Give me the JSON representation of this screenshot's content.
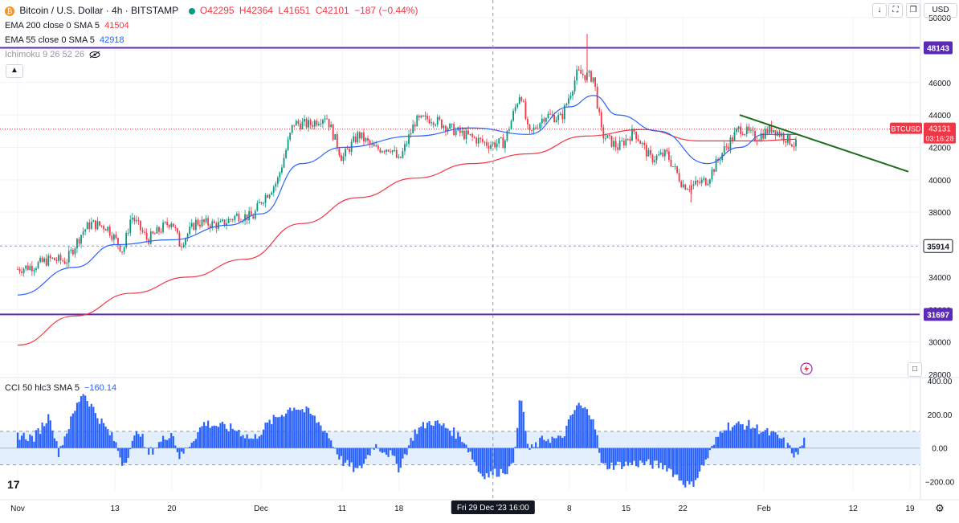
{
  "header": {
    "symbol_title": "Bitcoin / U.S. Dollar · 4h · BITSTAMP",
    "ohlc": {
      "o": "O42295",
      "h": "H42364",
      "l": "L41651",
      "c": "C42101",
      "change": "−187 (−0.44%)"
    },
    "ema200_label": "EMA 200 close 0 SMA 5",
    "ema200_value": "41504",
    "ema55_label": "EMA 55 close 0 SMA 5",
    "ema55_value": "42918",
    "ichimoku_label": "Ichimoku 9 26 52 26",
    "collapse_icon": "chevron-up-icon",
    "currency": "USD",
    "eye_icon": "eye-crossed-icon"
  },
  "colors": {
    "up": "#089981",
    "down": "#f23645",
    "ema200": "#f23645",
    "ema55": "#2962ff",
    "hline": "#5b2bb5",
    "trendline": "#1b6e1b",
    "cci": "#2962ff",
    "cci_band": "#e3effd"
  },
  "chart_data": [
    {
      "type": "candlestick",
      "title": "Bitcoin / U.S. Dollar · 4h · BITSTAMP",
      "x_ticks": [
        "Nov",
        "13",
        "20",
        "Dec",
        "11",
        "18",
        "Fri 29 Dec '23",
        "16:00",
        "8",
        "15",
        "22",
        "Feb",
        "12",
        "19"
      ],
      "y_ticks": [
        28000,
        30000,
        32000,
        34000,
        36000,
        38000,
        40000,
        42000,
        44000,
        46000,
        48000,
        50000
      ],
      "ylim": [
        27800,
        50200
      ],
      "close_path": [
        {
          "x": "Nov 1",
          "y": 34500
        },
        {
          "x": "Nov 3",
          "y": 34700
        },
        {
          "x": "Nov 5",
          "y": 35100
        },
        {
          "x": "Nov 7",
          "y": 35000
        },
        {
          "x": "Nov 9",
          "y": 36800
        },
        {
          "x": "Nov 10",
          "y": 37300
        },
        {
          "x": "Nov 12",
          "y": 37100
        },
        {
          "x": "Nov 14",
          "y": 35600
        },
        {
          "x": "Nov 15",
          "y": 37800
        },
        {
          "x": "Nov 17",
          "y": 36300
        },
        {
          "x": "Nov 20",
          "y": 37500
        },
        {
          "x": "Nov 21",
          "y": 36000
        },
        {
          "x": "Nov 23",
          "y": 37400
        },
        {
          "x": "Nov 26",
          "y": 37200
        },
        {
          "x": "Nov 28",
          "y": 37800
        },
        {
          "x": "Nov 30",
          "y": 37700
        },
        {
          "x": "Dec 1",
          "y": 38700
        },
        {
          "x": "Dec 3",
          "y": 39900
        },
        {
          "x": "Dec 5",
          "y": 43500
        },
        {
          "x": "Dec 7",
          "y": 43400
        },
        {
          "x": "Dec 9",
          "y": 44000
        },
        {
          "x": "Dec 11",
          "y": 41300
        },
        {
          "x": "Dec 13",
          "y": 42800
        },
        {
          "x": "Dec 15",
          "y": 41900
        },
        {
          "x": "Dec 17",
          "y": 42000
        },
        {
          "x": "Dec 18",
          "y": 41100
        },
        {
          "x": "Dec 20",
          "y": 43600
        },
        {
          "x": "Dec 22",
          "y": 43800
        },
        {
          "x": "Dec 25",
          "y": 43000
        },
        {
          "x": "Dec 27",
          "y": 42600
        },
        {
          "x": "Dec 29",
          "y": 42200
        },
        {
          "x": "Dec 31",
          "y": 42300
        },
        {
          "x": "Jan 2",
          "y": 45500
        },
        {
          "x": "Jan 3",
          "y": 42700
        },
        {
          "x": "Jan 5",
          "y": 44000
        },
        {
          "x": "Jan 7",
          "y": 43800
        },
        {
          "x": "Jan 9",
          "y": 46600
        },
        {
          "x": "Jan 11",
          "y": 46300
        },
        {
          "x": "Jan 12",
          "y": 42800
        },
        {
          "x": "Jan 14",
          "y": 42000
        },
        {
          "x": "Jan 16",
          "y": 43000
        },
        {
          "x": "Jan 18",
          "y": 41300
        },
        {
          "x": "Jan 20",
          "y": 41600
        },
        {
          "x": "Jan 22",
          "y": 39700
        },
        {
          "x": "Jan 23",
          "y": 39600
        },
        {
          "x": "Jan 25",
          "y": 40000
        },
        {
          "x": "Jan 27",
          "y": 41800
        },
        {
          "x": "Jan 29",
          "y": 43200
        },
        {
          "x": "Jan 31",
          "y": 42600
        },
        {
          "x": "Feb 2",
          "y": 43200
        },
        {
          "x": "Feb 5",
          "y": 42100
        }
      ],
      "extremes": {
        "high": 49000,
        "low": 38600
      },
      "ema200_path": [
        {
          "x": "Nov 1",
          "y": 29800
        },
        {
          "x": "Nov 8",
          "y": 31600
        },
        {
          "x": "Nov 15",
          "y": 33000
        },
        {
          "x": "Nov 22",
          "y": 34000
        },
        {
          "x": "Nov 29",
          "y": 35100
        },
        {
          "x": "Dec 6",
          "y": 37300
        },
        {
          "x": "Dec 13",
          "y": 38900
        },
        {
          "x": "Dec 20",
          "y": 40100
        },
        {
          "x": "Dec 27",
          "y": 41000
        },
        {
          "x": "Jan 3",
          "y": 41600
        },
        {
          "x": "Jan 10",
          "y": 42700
        },
        {
          "x": "Jan 17",
          "y": 43100
        },
        {
          "x": "Jan 24",
          "y": 42400
        },
        {
          "x": "Jan 31",
          "y": 42400
        },
        {
          "x": "Feb 5",
          "y": 42500
        }
      ],
      "ema55_path": [
        {
          "x": "Nov 1",
          "y": 32900
        },
        {
          "x": "Nov 8",
          "y": 34600
        },
        {
          "x": "Nov 13",
          "y": 36000
        },
        {
          "x": "Nov 20",
          "y": 36300
        },
        {
          "x": "Nov 27",
          "y": 37200
        },
        {
          "x": "Dec 1",
          "y": 37900
        },
        {
          "x": "Dec 6",
          "y": 41000
        },
        {
          "x": "Dec 11",
          "y": 42000
        },
        {
          "x": "Dec 20",
          "y": 42700
        },
        {
          "x": "Dec 27",
          "y": 43200
        },
        {
          "x": "Jan 3",
          "y": 42800
        },
        {
          "x": "Jan 8",
          "y": 44500
        },
        {
          "x": "Jan 11",
          "y": 45200
        },
        {
          "x": "Jan 14",
          "y": 44000
        },
        {
          "x": "Jan 19",
          "y": 43000
        },
        {
          "x": "Jan 25",
          "y": 41000
        },
        {
          "x": "Jan 29",
          "y": 42000
        },
        {
          "x": "Feb 1",
          "y": 42800
        },
        {
          "x": "Feb 5",
          "y": 42800
        }
      ],
      "horizontal_lines": [
        {
          "price": 48143,
          "label": "48143",
          "style": "solid"
        },
        {
          "price": 35914,
          "label": "35914",
          "style": "dashed"
        },
        {
          "price": 31697,
          "label": "31697",
          "style": "solid"
        }
      ],
      "trendline": [
        {
          "x": "Jan 29",
          "y": 44000
        },
        {
          "x": "Feb 19",
          "y": 40500
        }
      ],
      "last_price": {
        "symbol": "BTCUSD",
        "price": "43131",
        "countdown": "03:16:28"
      },
      "crosshair": {
        "x": "Fri 29 Dec '23 16:00"
      }
    },
    {
      "type": "bar",
      "title": "CCI 50 hlc3 SMA 5",
      "last_value": "−160.14",
      "y_ticks": [
        "400.00",
        "200.00",
        "0.00",
        "−200.00"
      ],
      "ylim": [
        -260,
        420
      ],
      "band": [
        -100,
        100
      ],
      "series": [
        {
          "x": "Nov 1",
          "y": 80
        },
        {
          "x": "Nov 3",
          "y": 60
        },
        {
          "x": "Nov 5",
          "y": 200
        },
        {
          "x": "Nov 6",
          "y": -30
        },
        {
          "x": "Nov 9",
          "y": 340
        },
        {
          "x": "Nov 11",
          "y": 180
        },
        {
          "x": "Nov 13",
          "y": 40
        },
        {
          "x": "Nov 14",
          "y": -100
        },
        {
          "x": "Nov 16",
          "y": 120
        },
        {
          "x": "Nov 17",
          "y": -40
        },
        {
          "x": "Nov 20",
          "y": 100
        },
        {
          "x": "Nov 21",
          "y": -60
        },
        {
          "x": "Nov 24",
          "y": 150
        },
        {
          "x": "Nov 28",
          "y": 110
        },
        {
          "x": "Nov 30",
          "y": 50
        },
        {
          "x": "Dec 2",
          "y": 150
        },
        {
          "x": "Dec 5",
          "y": 250
        },
        {
          "x": "Dec 7",
          "y": 210
        },
        {
          "x": "Dec 9",
          "y": 100
        },
        {
          "x": "Dec 11",
          "y": -80
        },
        {
          "x": "Dec 13",
          "y": -140
        },
        {
          "x": "Dec 15",
          "y": 20
        },
        {
          "x": "Dec 17",
          "y": -40
        },
        {
          "x": "Dec 18",
          "y": -120
        },
        {
          "x": "Dec 20",
          "y": 100
        },
        {
          "x": "Dec 22",
          "y": 160
        },
        {
          "x": "Dec 24",
          "y": 120
        },
        {
          "x": "Dec 26",
          "y": 50
        },
        {
          "x": "Dec 28",
          "y": -150
        },
        {
          "x": "Dec 29",
          "y": -160
        },
        {
          "x": "Jan 1",
          "y": -120
        },
        {
          "x": "Jan 2",
          "y": 320
        },
        {
          "x": "Jan 3",
          "y": -20
        },
        {
          "x": "Jan 5",
          "y": 60
        },
        {
          "x": "Jan 7",
          "y": 50
        },
        {
          "x": "Jan 9",
          "y": 260
        },
        {
          "x": "Jan 11",
          "y": 190
        },
        {
          "x": "Jan 12",
          "y": -110
        },
        {
          "x": "Jan 14",
          "y": -100
        },
        {
          "x": "Jan 17",
          "y": -90
        },
        {
          "x": "Jan 20",
          "y": -110
        },
        {
          "x": "Jan 22",
          "y": -200
        },
        {
          "x": "Jan 23",
          "y": -230
        },
        {
          "x": "Jan 25",
          "y": -60
        },
        {
          "x": "Jan 27",
          "y": 130
        },
        {
          "x": "Jan 30",
          "y": 140
        },
        {
          "x": "Feb 1",
          "y": 100
        },
        {
          "x": "Feb 3",
          "y": 60
        },
        {
          "x": "Feb 5",
          "y": -50
        },
        {
          "x": "Feb 6",
          "y": 50
        }
      ]
    }
  ]
}
